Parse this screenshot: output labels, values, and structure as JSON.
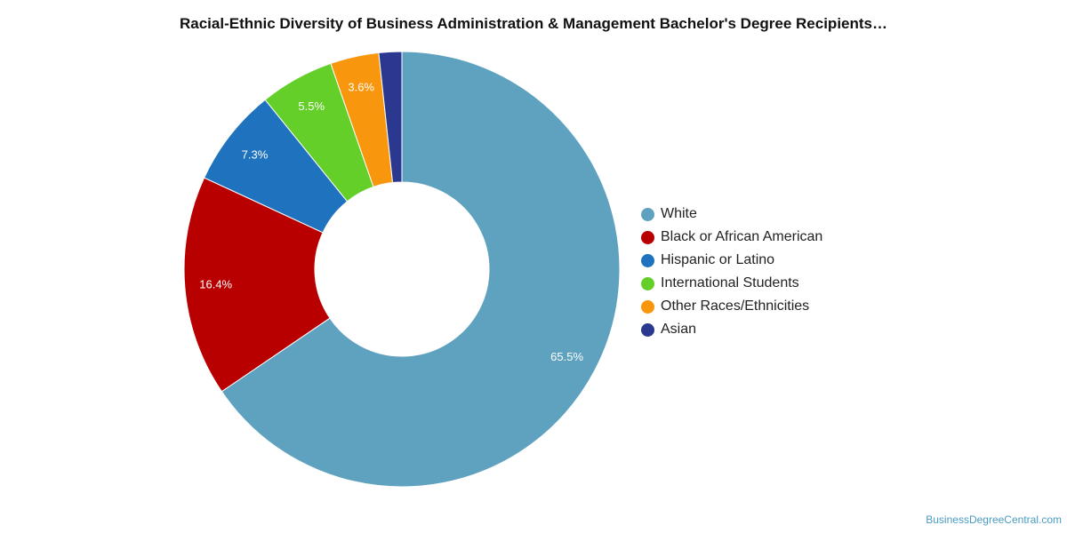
{
  "chart_data": {
    "type": "pie",
    "title": "Racial-Ethnic Diversity of Business Administration & Management Bachelor's Degree Recipients…",
    "legend_position": "right",
    "donut": true,
    "categories": [
      "White",
      "Black or African American",
      "Hispanic or Latino",
      "International Students",
      "Other Races/Ethnicities",
      "Asian"
    ],
    "values": [
      65.5,
      16.4,
      7.3,
      5.5,
      3.6,
      1.7
    ],
    "data_labels": [
      "65.5%",
      "16.4%",
      "7.3%",
      "5.5%",
      "3.6%",
      ""
    ],
    "colors": [
      "#5fa2bf",
      "#b90000",
      "#1f72bd",
      "#63cf28",
      "#f8960d",
      "#2b388f"
    ]
  },
  "watermark": "BusinessDegreeCentral.com"
}
